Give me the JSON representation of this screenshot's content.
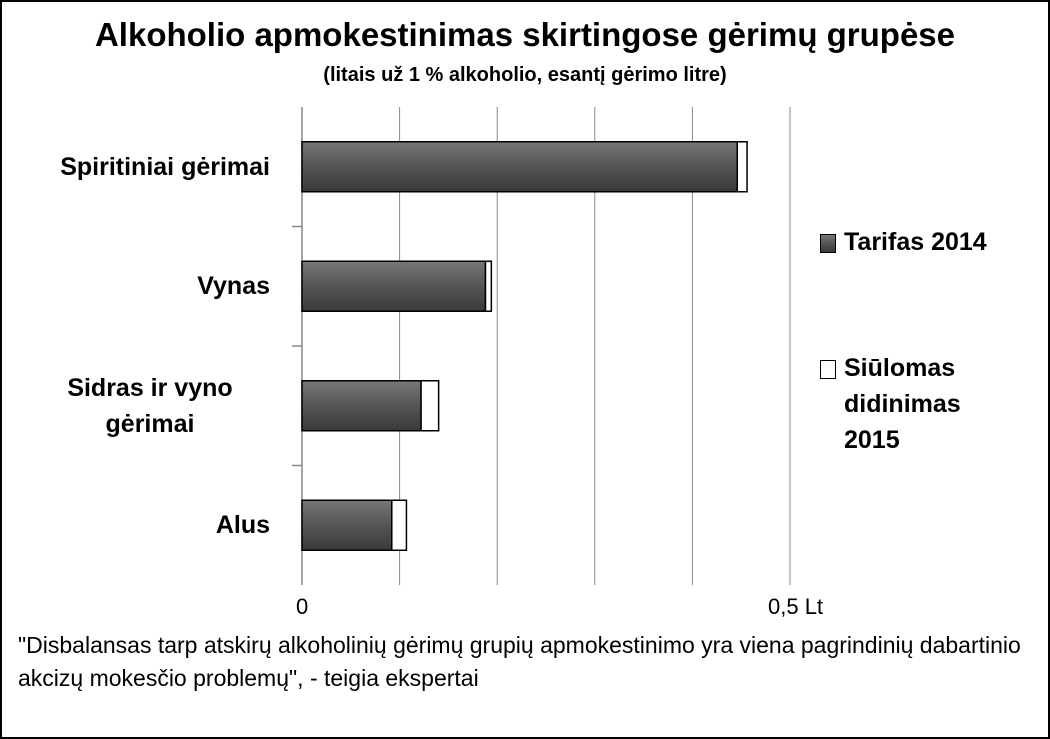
{
  "chart_data": {
    "type": "stacked_barh",
    "title": "Alkoholio apmokestinimas skirtingose  gėrimų grupėse",
    "subtitle": "(litais už 1 % alkoholio, esantį gėrimo litre)",
    "categories": [
      "Spiritiniai gėrimai",
      "Vynas",
      "Sidras ir vyno gėrimai",
      "Alus"
    ],
    "series": [
      {
        "name": "Tarifas  2014",
        "color": "#555555",
        "values": [
          0.446,
          0.188,
          0.122,
          0.092
        ]
      },
      {
        "name": "Siūlomas didinimas 2015",
        "color": "#ffffff",
        "values": [
          0.01,
          0.006,
          0.018,
          0.015
        ]
      }
    ],
    "xlim": [
      0,
      0.5
    ],
    "xticks": [
      0,
      {
        "value": 0.5,
        "label": "0,5  Lt"
      }
    ],
    "grid_values": [
      0.1,
      0.2,
      0.3,
      0.4
    ],
    "legend": "right",
    "footnote": "\"Disbalansas  tarp atskirų  alkoholinių  gėrimų  grupių apmokestinimo yra viena pagrindinių dabartinio akcizų mokesčio problemų\", - teigia ekspertai"
  }
}
